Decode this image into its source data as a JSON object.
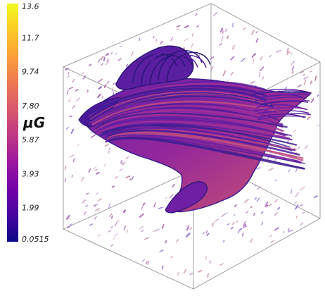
{
  "chart_data": {
    "type": "3d streamline volume render",
    "colorbar": {
      "label": "μG",
      "min": 0.0515,
      "max": 13.6,
      "ticks": [
        "13.6",
        "11.7",
        "9.74",
        "7.80",
        "5.87",
        "3.93",
        "1.99",
        "0.0515"
      ],
      "colormap": "plasma",
      "colors": [
        "#0d0887",
        "#46039f",
        "#7201a8",
        "#9c179e",
        "#bd3786",
        "#d8576b",
        "#ed7953",
        "#fb9f3a",
        "#fdca26",
        "#f0f921"
      ]
    },
    "box": {
      "edge_color": "#8a8a8a"
    },
    "streamlines": {
      "dominant_color": "#8a2a9c",
      "outline_color": "#3b1f8f"
    }
  }
}
